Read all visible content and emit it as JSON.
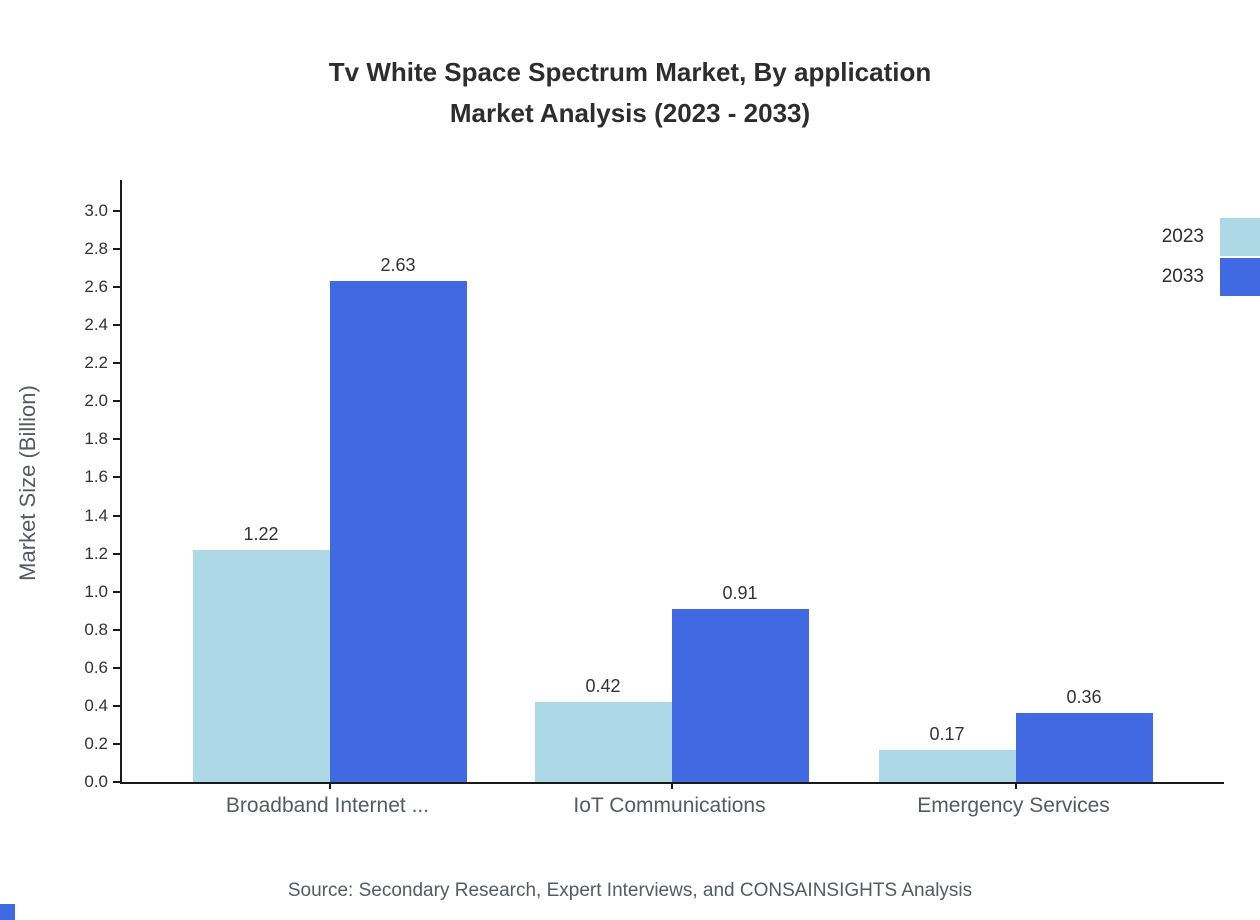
{
  "title": {
    "line1": "Tv White Space Spectrum Market, By application",
    "line2": "Market Analysis (2023 - 2033)"
  },
  "chart_data": {
    "type": "bar",
    "categories": [
      "Broadband Internet ...",
      "IoT Communications",
      "Emergency Services"
    ],
    "series": [
      {
        "name": "2023",
        "color": "#add8e6",
        "values": [
          1.22,
          0.42,
          0.17
        ]
      },
      {
        "name": "2033",
        "color": "#4169e1",
        "values": [
          2.63,
          0.91,
          0.36
        ]
      }
    ],
    "ylabel": "Market Size (Billion)",
    "ylim": [
      0,
      3.0
    ],
    "ytick_step": 0.2,
    "grid": false,
    "legend_position": "top-right"
  },
  "colors": {
    "accent_blue": "#4169e1"
  },
  "source": "Source: Secondary Research, Expert Interviews, and CONSAINSIGHTS Analysis"
}
